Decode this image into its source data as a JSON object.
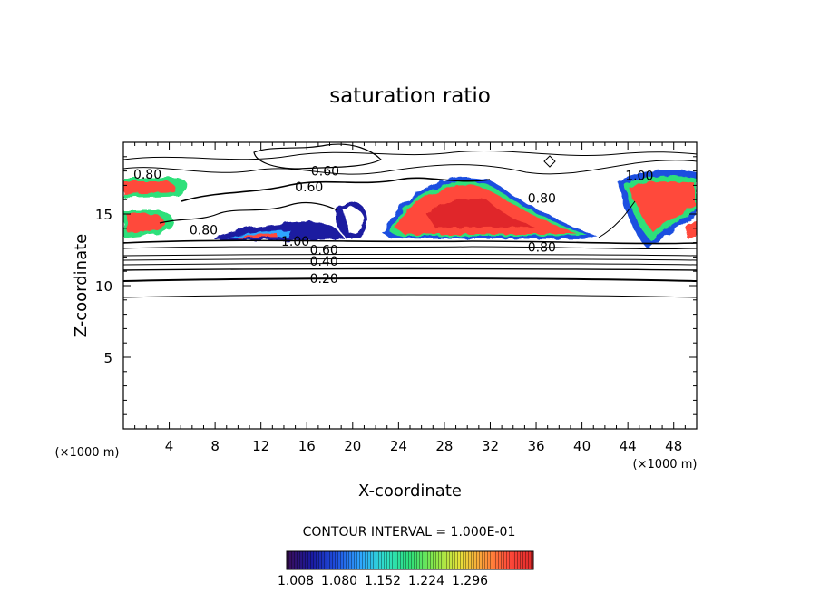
{
  "chart_data": {
    "type": "contour",
    "title": "saturation ratio",
    "xlabel": "X-coordinate",
    "ylabel": "Z-coordinate",
    "x_unit": "(×1000 m)",
    "z_unit": "(×1000 m)",
    "x_ticks": [
      "4",
      "8",
      "12",
      "16",
      "20",
      "24",
      "28",
      "32",
      "36",
      "40",
      "44",
      "48"
    ],
    "z_ticks": [
      "5",
      "10",
      "15"
    ],
    "xlim": [
      0,
      50
    ],
    "zlim": [
      0,
      20
    ],
    "contour_interval_text": "CONTOUR INTERVAL = 1.000E-01",
    "contour_labels": [
      {
        "text": "0.60",
        "x": 17.6,
        "z": 18.0
      },
      {
        "text": "0.60",
        "x": 16.2,
        "z": 16.9
      },
      {
        "text": "0.80",
        "x": 2.1,
        "z": 17.8
      },
      {
        "text": "0.80",
        "x": 36.5,
        "z": 16.1
      },
      {
        "text": "0.80",
        "x": 7.0,
        "z": 13.9
      },
      {
        "text": "0.80",
        "x": 36.5,
        "z": 12.7
      },
      {
        "text": "1.00",
        "x": 45.0,
        "z": 17.7
      },
      {
        "text": "1.00",
        "x": 15.0,
        "z": 13.1
      },
      {
        "text": "0.60",
        "x": 17.5,
        "z": 12.5
      },
      {
        "text": "0.40",
        "x": 17.5,
        "z": 11.7
      },
      {
        "text": "0.20",
        "x": 17.5,
        "z": 10.5
      }
    ],
    "colorbar": {
      "ticks": [
        "1.008",
        "1.080",
        "1.152",
        "1.224",
        "1.296"
      ],
      "colors": [
        "#3a0d56",
        "#1a1aa0",
        "#1f4fe0",
        "#2fa6ff",
        "#2fe0c8",
        "#2ee07a",
        "#8ae84a",
        "#e6e23a",
        "#ff9a3a",
        "#ff4a3a",
        "#e0282a"
      ]
    }
  }
}
